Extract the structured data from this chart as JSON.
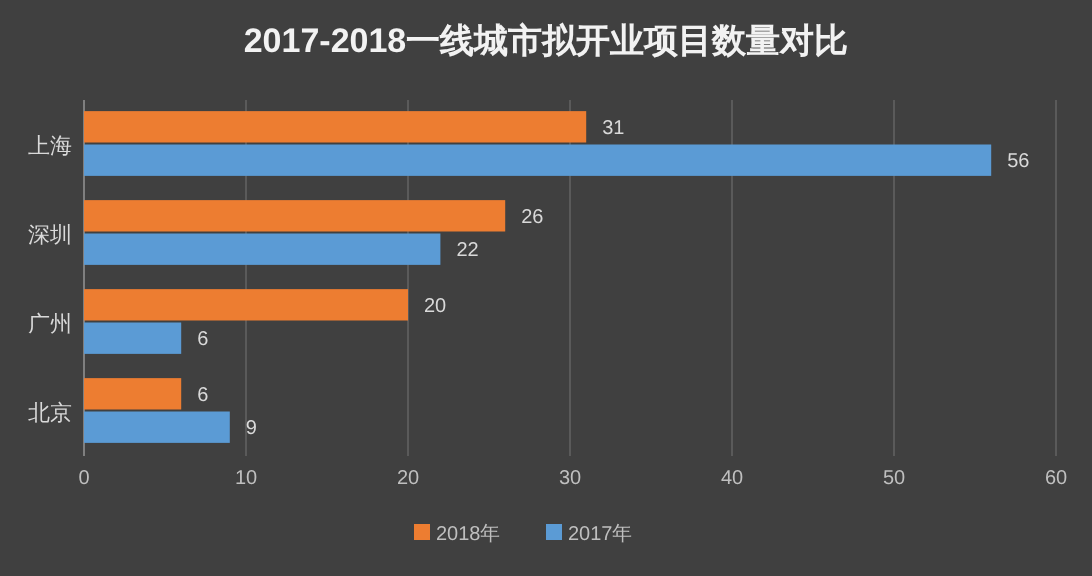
{
  "chart_data": {
    "type": "bar",
    "orientation": "horizontal",
    "title": "2017-2018一线城市拟开业项目数量对比",
    "categories": [
      "上海",
      "深圳",
      "广州",
      "北京"
    ],
    "series": [
      {
        "name": "2018年",
        "color": "#ed7d31",
        "values": [
          31,
          26,
          20,
          6
        ]
      },
      {
        "name": "2017年",
        "color": "#5b9bd5",
        "values": [
          56,
          22,
          6,
          9
        ]
      }
    ],
    "xlim": [
      0,
      60
    ],
    "xticks": [
      0,
      10,
      20,
      30,
      40,
      50,
      60
    ],
    "data_labels": true,
    "grid": "x",
    "legend": "bottom"
  }
}
